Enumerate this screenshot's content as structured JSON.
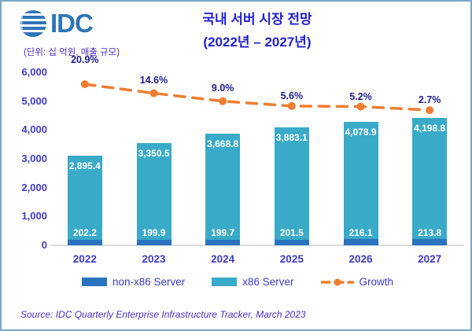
{
  "logo": {
    "text": "IDC"
  },
  "header": {
    "title": "국내 서버 시장 전망",
    "subtitle": "(2022년 – 2027년)",
    "unit_label": "(단위: 십 억원, 매출 규모)"
  },
  "source": "Source: IDC Quarterly Enterprise Infrastructure Tracker, March 2023",
  "colors": {
    "non_x86_bar": "#2A73BF",
    "x86_bar": "#39AAC7",
    "growth_line": "#ED7D31",
    "title_text": "#2121CE",
    "axis_text": "#3F3BC8",
    "growth_label_text": "#1D1D8F",
    "logo_blue": "#2E75B5",
    "frame_border": "#74A9CC"
  },
  "chart_data": {
    "type": "bar",
    "stacked": true,
    "title": "국내 서버 시장 전망",
    "subtitle": "(2022년 – 2027년)",
    "unit_label": "(단위: 십 억원, 매출 규모)",
    "categories": [
      "2022",
      "2023",
      "2024",
      "2025",
      "2026",
      "2027"
    ],
    "series": [
      {
        "name": "non-x86 Server",
        "color": "#2A73BF",
        "values": [
          202.2,
          199.9,
          199.7,
          201.5,
          216.1,
          213.8
        ]
      },
      {
        "name": "x86 Server",
        "color": "#39AAC7",
        "values": [
          2895.4,
          3350.5,
          3668.8,
          3883.1,
          4078.9,
          4198.8
        ]
      }
    ],
    "line_series": {
      "name": "Growth",
      "color": "#ED7D31",
      "values_pct": [
        20.9,
        14.6,
        9.0,
        5.6,
        5.2,
        2.7
      ]
    },
    "xlabel": "",
    "ylabel": "",
    "ylim": [
      0,
      6000
    ],
    "yticks": [
      0,
      1000,
      2000,
      3000,
      4000,
      5000,
      6000
    ],
    "grid": false,
    "legend_position": "bottom"
  }
}
